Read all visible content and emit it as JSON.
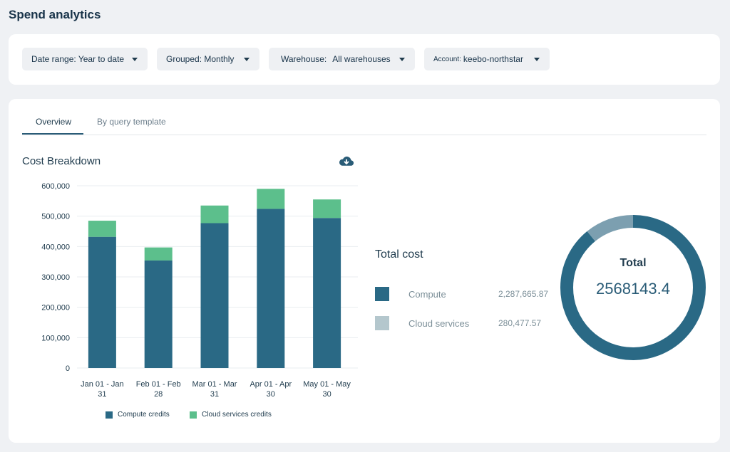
{
  "page": {
    "title": "Spend analytics"
  },
  "filters": {
    "date_range": "Date range: Year to date",
    "grouped": "Grouped: Monthly",
    "warehouse_prefix": "Warehouse:",
    "warehouse_value": "All warehouses",
    "account_prefix": "Account:",
    "account_value": "keebo-northstar"
  },
  "tabs": [
    {
      "label": "Overview",
      "active": true
    },
    {
      "label": "By query template",
      "active": false
    }
  ],
  "cost_breakdown": {
    "title": "Cost Breakdown",
    "download_icon": "cloud-download-icon"
  },
  "colors": {
    "compute": "#2a6985",
    "cloud_services": "#5cbf8c",
    "cloud_services_total": "#b4c7cd",
    "donut_light": "#7c9fb0"
  },
  "chart_data": {
    "type": "bar",
    "stacked": true,
    "categories": [
      "Jan 01 - Jan 31",
      "Feb 01 - Feb 28",
      "Mar 01 - Mar 31",
      "Apr 01 - Apr 30",
      "May 01 - May 30"
    ],
    "category_lines": [
      [
        "Jan 01 - Jan",
        "31"
      ],
      [
        "Feb 01 - Feb",
        "28"
      ],
      [
        "Mar 01 - Mar",
        "31"
      ],
      [
        "Apr 01 - Apr",
        "30"
      ],
      [
        "May 01 - May",
        "30"
      ]
    ],
    "series": [
      {
        "name": "Compute credits",
        "values": [
          432000,
          354000,
          477000,
          524000,
          494000
        ]
      },
      {
        "name": "Cloud services credits",
        "values": [
          53000,
          43000,
          58000,
          66000,
          61000
        ]
      }
    ],
    "ylim": [
      0,
      600000
    ],
    "yticks": [
      0,
      100000,
      200000,
      300000,
      400000,
      500000,
      600000
    ],
    "ytick_labels": [
      "0",
      "100,000",
      "200,000",
      "300,000",
      "400,000",
      "500,000",
      "600,000"
    ],
    "grid": true,
    "legend": "bottom"
  },
  "total_cost": {
    "title": "Total cost",
    "items": [
      {
        "label": "Compute",
        "value": "2,287,665.87",
        "fraction": 0.8908
      },
      {
        "label": "Cloud services",
        "value": "280,477.57",
        "fraction": 0.1092
      }
    ],
    "donut_label": "Total",
    "donut_value": "2568143.4"
  }
}
